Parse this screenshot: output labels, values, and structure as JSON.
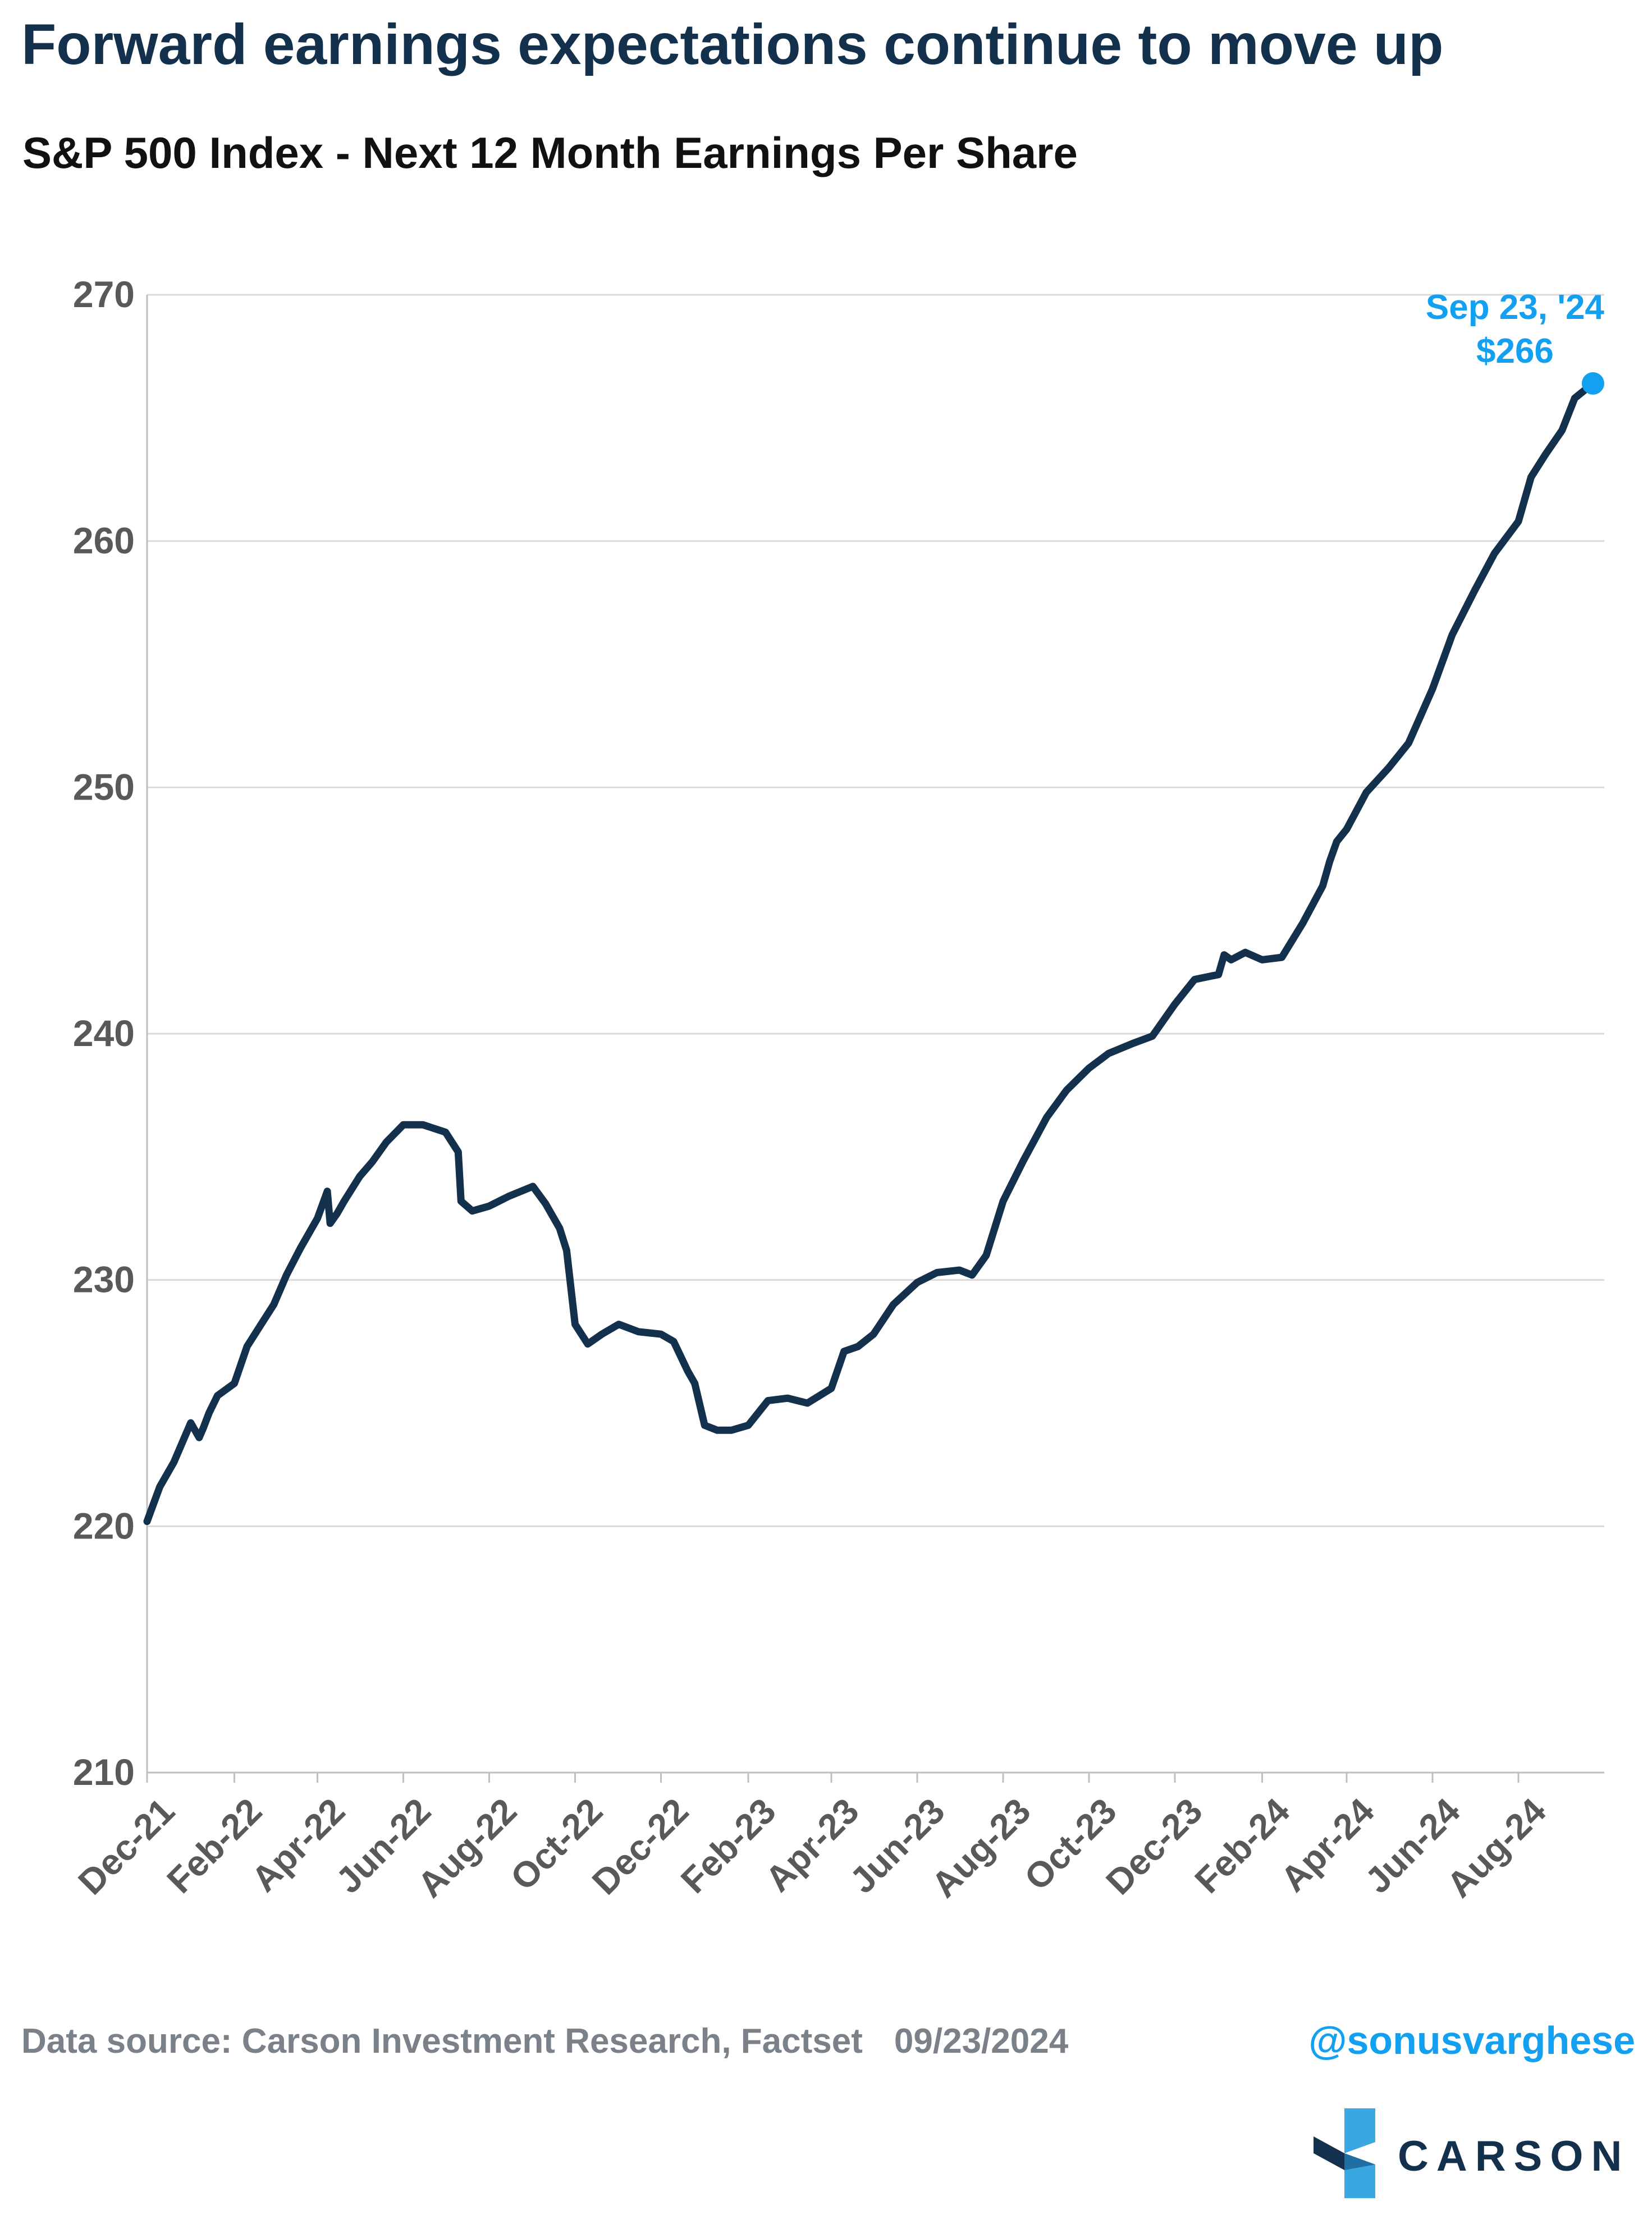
{
  "header": {
    "title": "Forward earnings expectations continue to move up",
    "subtitle": "S&P 500 Index - Next 12 Month Earnings Per Share"
  },
  "footer": {
    "source": "Data source: Carson Investment Research, Factset",
    "date": "09/23/2024",
    "handle": "@sonusvarghese",
    "logo_text": "CARSON"
  },
  "colors": {
    "line": "#13304c",
    "accent": "#14a0f0",
    "grid": "#d9d9d9",
    "tick_text": "#595959"
  },
  "chart_data": {
    "type": "line",
    "title": "S&P 500 Index - Next 12 Month Earnings Per Share",
    "xlabel": "",
    "ylabel": "",
    "ylim": [
      210,
      270
    ],
    "yticks": [
      210,
      220,
      230,
      240,
      250,
      260,
      270
    ],
    "grid": true,
    "xlim": [
      "2021-12-01",
      "2024-10-01"
    ],
    "xticks": [
      "2021-12-01",
      "2022-02-01",
      "2022-04-01",
      "2022-06-01",
      "2022-08-01",
      "2022-10-01",
      "2022-12-01",
      "2023-02-01",
      "2023-04-01",
      "2023-06-01",
      "2023-08-01",
      "2023-10-01",
      "2023-12-01",
      "2024-02-01",
      "2024-04-01",
      "2024-06-01",
      "2024-08-01"
    ],
    "xtick_labels": [
      "Dec-21",
      "Feb-22",
      "Apr-22",
      "Jun-22",
      "Aug-22",
      "Oct-22",
      "Dec-22",
      "Feb-23",
      "Apr-23",
      "Jun-23",
      "Aug-23",
      "Oct-23",
      "Dec-23",
      "Feb-24",
      "Apr-24",
      "Jun-24",
      "Aug-24"
    ],
    "series": [
      {
        "x": [
          "2021-12-01",
          "2021-12-10",
          "2021-12-20",
          "2022-01-01",
          "2022-01-07",
          "2022-01-10",
          "2022-01-14",
          "2022-01-20",
          "2022-02-01",
          "2022-02-10",
          "2022-02-20",
          "2022-03-01",
          "2022-03-10",
          "2022-03-20",
          "2022-04-01",
          "2022-04-08",
          "2022-04-10",
          "2022-04-15",
          "2022-04-20",
          "2022-05-01",
          "2022-05-10",
          "2022-05-20",
          "2022-06-01",
          "2022-06-15",
          "2022-07-01",
          "2022-07-10",
          "2022-07-12",
          "2022-07-20",
          "2022-08-01",
          "2022-08-15",
          "2022-09-01",
          "2022-09-10",
          "2022-09-20",
          "2022-09-25",
          "2022-10-01",
          "2022-10-10",
          "2022-10-20",
          "2022-11-01",
          "2022-11-15",
          "2022-12-01",
          "2022-12-10",
          "2022-12-20",
          "2022-12-25",
          "2023-01-01",
          "2023-01-10",
          "2023-01-20",
          "2023-02-01",
          "2023-02-15",
          "2023-03-01",
          "2023-03-15",
          "2023-04-01",
          "2023-04-10",
          "2023-04-20",
          "2023-05-01",
          "2023-05-15",
          "2023-06-01",
          "2023-06-15",
          "2023-07-01",
          "2023-07-10",
          "2023-07-20",
          "2023-08-01",
          "2023-08-15",
          "2023-09-01",
          "2023-09-15",
          "2023-10-01",
          "2023-10-15",
          "2023-11-01",
          "2023-11-15",
          "2023-12-01",
          "2023-12-15",
          "2024-01-01",
          "2024-01-05",
          "2024-01-10",
          "2024-01-20",
          "2024-02-01",
          "2024-02-15",
          "2024-03-01",
          "2024-03-15",
          "2024-03-20",
          "2024-03-25",
          "2024-04-01",
          "2024-04-15",
          "2024-05-01",
          "2024-05-15",
          "2024-06-01",
          "2024-06-15",
          "2024-07-01",
          "2024-07-15",
          "2024-08-01",
          "2024-08-10",
          "2024-08-20",
          "2024-09-01",
          "2024-09-10",
          "2024-09-23"
        ],
        "values": [
          220.2,
          221.6,
          222.6,
          224.2,
          223.6,
          224.0,
          224.6,
          225.3,
          225.8,
          227.3,
          228.2,
          229.0,
          230.2,
          231.3,
          232.5,
          233.6,
          232.3,
          232.7,
          233.2,
          234.2,
          234.8,
          235.6,
          236.3,
          236.3,
          236.0,
          235.2,
          233.2,
          232.8,
          233.0,
          233.4,
          233.8,
          233.1,
          232.1,
          231.2,
          228.2,
          227.4,
          227.8,
          228.2,
          227.9,
          227.8,
          227.5,
          226.3,
          225.8,
          224.1,
          223.9,
          223.9,
          224.1,
          225.1,
          225.2,
          225.0,
          225.6,
          227.1,
          227.3,
          227.8,
          229.0,
          229.9,
          230.3,
          230.4,
          230.2,
          231.0,
          233.2,
          234.8,
          236.6,
          237.7,
          238.6,
          239.2,
          239.6,
          239.9,
          241.2,
          242.2,
          242.4,
          243.2,
          243.0,
          243.3,
          243.0,
          243.1,
          244.5,
          246.0,
          247.0,
          247.8,
          248.3,
          249.8,
          250.8,
          251.8,
          254.0,
          256.2,
          258.0,
          259.5,
          260.8,
          262.6,
          263.5,
          264.5,
          265.8,
          266.4
        ]
      }
    ],
    "annotation": {
      "date_label": "Sep 23, '24",
      "value_label": "$266",
      "x": "2024-09-23",
      "y": 266.4
    }
  }
}
